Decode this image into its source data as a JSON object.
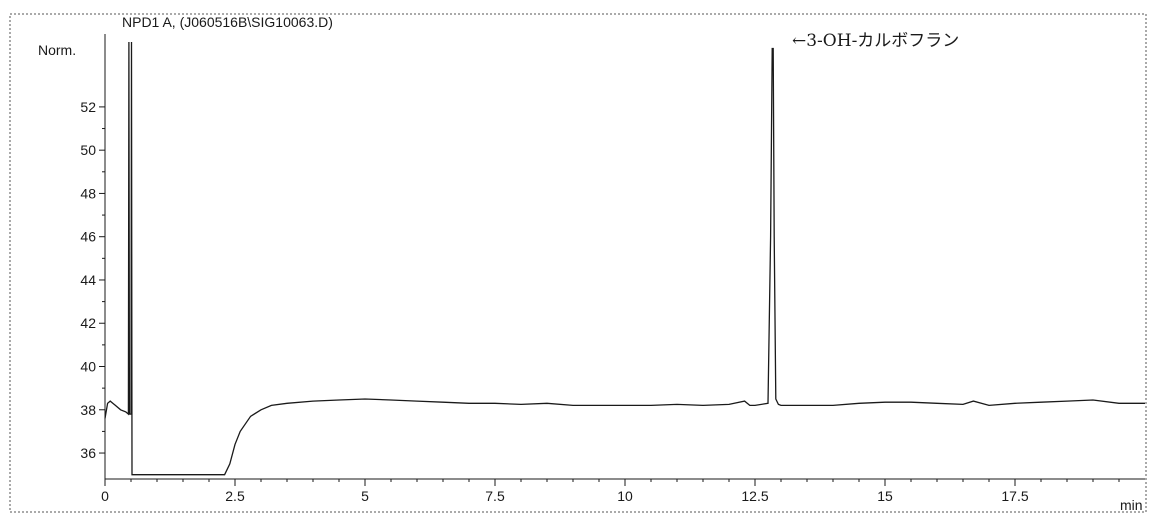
{
  "chart_data": {
    "type": "line",
    "title": "NPD1 A, (J060516B\\SIG10063.D)",
    "ylabel": "Norm.",
    "xlabel": "min",
    "xlim": [
      0,
      20
    ],
    "ylim": [
      34.8,
      55
    ],
    "x_ticks": [
      0,
      2.5,
      5,
      7.5,
      10,
      12.5,
      15,
      17.5
    ],
    "x_tick_labels": [
      "0",
      "2.5",
      "5",
      "7.5",
      "10",
      "12.5",
      "15",
      "17.5"
    ],
    "y_ticks": [
      36,
      38,
      40,
      42,
      44,
      46,
      48,
      50,
      52
    ],
    "y_tick_labels": [
      "36",
      "38",
      "40",
      "42",
      "44",
      "46",
      "48",
      "50",
      "52"
    ],
    "grid": false,
    "annotations": [
      {
        "text": "←3-OH-カルボフラン",
        "x": 12.9,
        "y": 54.6
      }
    ],
    "series": [
      {
        "x": [
          0.0,
          0.05,
          0.1,
          0.15,
          0.2,
          0.3,
          0.4,
          0.45,
          0.46,
          0.47,
          0.48,
          0.5,
          0.51,
          0.52,
          0.53,
          0.54,
          0.55,
          2.3,
          2.4,
          2.5,
          2.6,
          2.8,
          3.0,
          3.2,
          3.5,
          4.0,
          4.5,
          5.0,
          5.5,
          6.0,
          6.5,
          7.0,
          7.5,
          8.0,
          8.5,
          9.0,
          9.5,
          10.0,
          10.5,
          11.0,
          11.5,
          12.0,
          12.3,
          12.4,
          12.5,
          12.75,
          12.8,
          12.83,
          12.85,
          12.87,
          12.9,
          12.95,
          13.0,
          13.5,
          14.0,
          14.5,
          15.0,
          15.5,
          16.0,
          16.5,
          16.7,
          17.0,
          17.5,
          18.0,
          18.5,
          19.0,
          19.5,
          20.0
        ],
        "y": [
          37.6,
          38.3,
          38.4,
          38.3,
          38.2,
          38.0,
          37.9,
          37.8,
          55.0,
          37.8,
          37.8,
          37.8,
          55.0,
          35.0,
          35.0,
          35.0,
          35.0,
          35.0,
          35.5,
          36.4,
          37.0,
          37.7,
          38.0,
          38.2,
          38.3,
          38.4,
          38.45,
          38.5,
          38.45,
          38.4,
          38.35,
          38.3,
          38.3,
          38.25,
          38.3,
          38.2,
          38.2,
          38.2,
          38.2,
          38.25,
          38.2,
          38.25,
          38.4,
          38.2,
          38.2,
          38.3,
          46.0,
          54.7,
          54.7,
          46.0,
          38.5,
          38.25,
          38.2,
          38.2,
          38.2,
          38.3,
          38.35,
          38.35,
          38.3,
          38.25,
          38.4,
          38.2,
          38.3,
          38.35,
          38.4,
          38.45,
          38.3,
          38.3
        ]
      }
    ]
  }
}
